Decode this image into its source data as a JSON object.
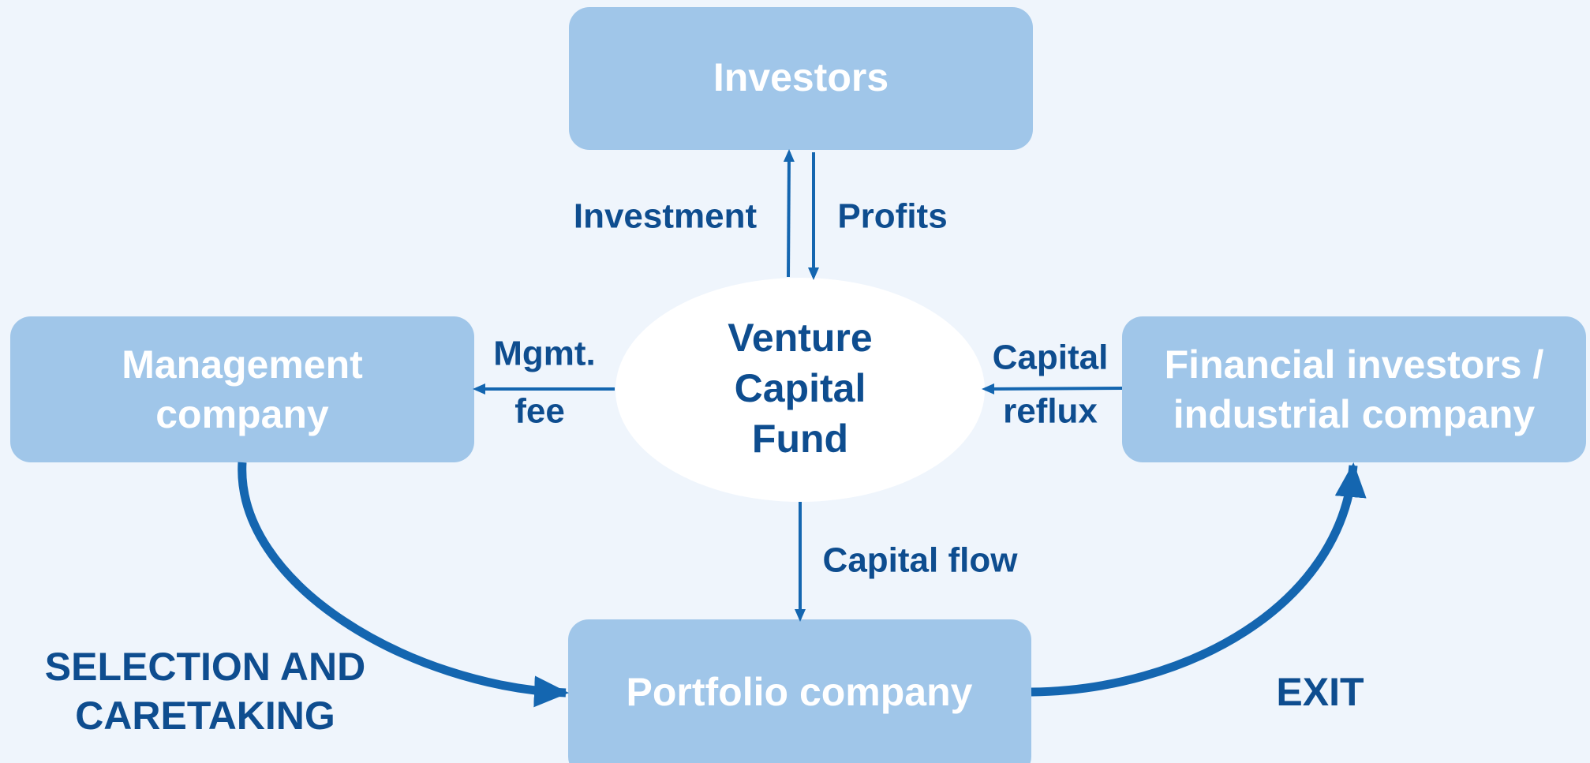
{
  "nodes": {
    "investors": {
      "label": "Investors"
    },
    "management": {
      "label": [
        "Management",
        "company"
      ]
    },
    "fund": {
      "label": [
        "Venture",
        "Capital",
        "Fund"
      ]
    },
    "financial": {
      "label": [
        "Financial investors /",
        "industrial company"
      ]
    },
    "portfolio": {
      "label": "Portfolio company"
    }
  },
  "edges": {
    "investment": {
      "label": "Investment"
    },
    "profits": {
      "label": "Profits"
    },
    "mgmt_fee": {
      "label": [
        "Mgmt.",
        "fee"
      ]
    },
    "capital_reflux": {
      "label": [
        "Capital",
        "reflux"
      ]
    },
    "capital_flow": {
      "label": "Capital flow"
    }
  },
  "phases": {
    "selection": {
      "label": [
        "SELECTION AND",
        "CARETAKING"
      ]
    },
    "exit": {
      "label": "EXIT"
    }
  }
}
